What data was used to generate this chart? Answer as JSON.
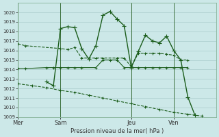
{
  "bg_color": "#cce8e8",
  "grid_color": "#aacccc",
  "line_color": "#1a5c1a",
  "ylabel": "Pression niveau de la mer( hPa )",
  "ylim": [
    1009,
    1021
  ],
  "yticks": [
    1009,
    1010,
    1011,
    1012,
    1013,
    1014,
    1015,
    1016,
    1017,
    1018,
    1019,
    1020
  ],
  "xtick_labels": [
    "Mer",
    "Sam",
    "Jeu",
    "Ven"
  ],
  "xtick_positions": [
    0,
    24,
    64,
    88
  ],
  "xlim": [
    0,
    112
  ],
  "series1": {
    "x": [
      0,
      4,
      24,
      28,
      32,
      36,
      44,
      48,
      56,
      60,
      64,
      68,
      72,
      76,
      80,
      84,
      88,
      92,
      96
    ],
    "y": [
      1016.7,
      1016.5,
      1016.2,
      1016.1,
      1016.3,
      1015.2,
      1015.2,
      1015.2,
      1015.2,
      1015.2,
      1014.3,
      1015.7,
      1015.7,
      1015.7,
      1015.7,
      1015.6,
      1015.5,
      1015.0,
      1015.0
    ],
    "linestyle": "--",
    "linewidth": 0.8,
    "marker": "+",
    "markersize": 3
  },
  "series2": {
    "x": [
      0,
      4,
      16,
      20,
      24,
      28,
      32,
      36,
      44,
      48,
      52,
      56,
      60,
      64,
      68,
      72,
      76,
      80,
      84,
      88,
      92,
      96
    ],
    "y": [
      1014.1,
      1014.1,
      1014.2,
      1014.2,
      1014.2,
      1014.2,
      1014.2,
      1014.2,
      1014.2,
      1015.0,
      1015.0,
      1015.0,
      1014.2,
      1014.2,
      1014.2,
      1014.2,
      1014.2,
      1014.2,
      1014.2,
      1014.2,
      1014.2,
      1014.2
    ],
    "linestyle": "-",
    "linewidth": 0.8,
    "marker": "+",
    "markersize": 3
  },
  "series3": {
    "x": [
      16,
      20,
      24,
      28,
      32,
      36,
      40,
      44,
      48,
      52,
      56,
      60,
      64,
      68,
      72,
      76,
      80,
      84,
      88,
      92,
      96,
      100
    ],
    "y": [
      1012.7,
      1012.3,
      1018.3,
      1018.5,
      1018.4,
      1016.2,
      1015.1,
      1016.5,
      1019.7,
      1020.1,
      1019.3,
      1018.6,
      1014.2,
      1015.9,
      1017.6,
      1017.0,
      1016.8,
      1017.5,
      1016.0,
      1015.0,
      1011.1,
      1009.2
    ],
    "linestyle": "-",
    "linewidth": 1.0,
    "marker": "+",
    "markersize": 4
  },
  "series4": {
    "x": [
      0,
      8,
      16,
      24,
      32,
      40,
      48,
      56,
      64,
      72,
      80,
      88,
      96,
      104
    ],
    "y": [
      1012.5,
      1012.3,
      1012.1,
      1011.8,
      1011.6,
      1011.3,
      1011.0,
      1010.7,
      1010.4,
      1010.1,
      1009.8,
      1009.5,
      1009.3,
      1009.1
    ],
    "linestyle": "--",
    "linewidth": 0.8,
    "marker": "+",
    "markersize": 3
  },
  "vline_positions": [
    0,
    24,
    64,
    88
  ]
}
